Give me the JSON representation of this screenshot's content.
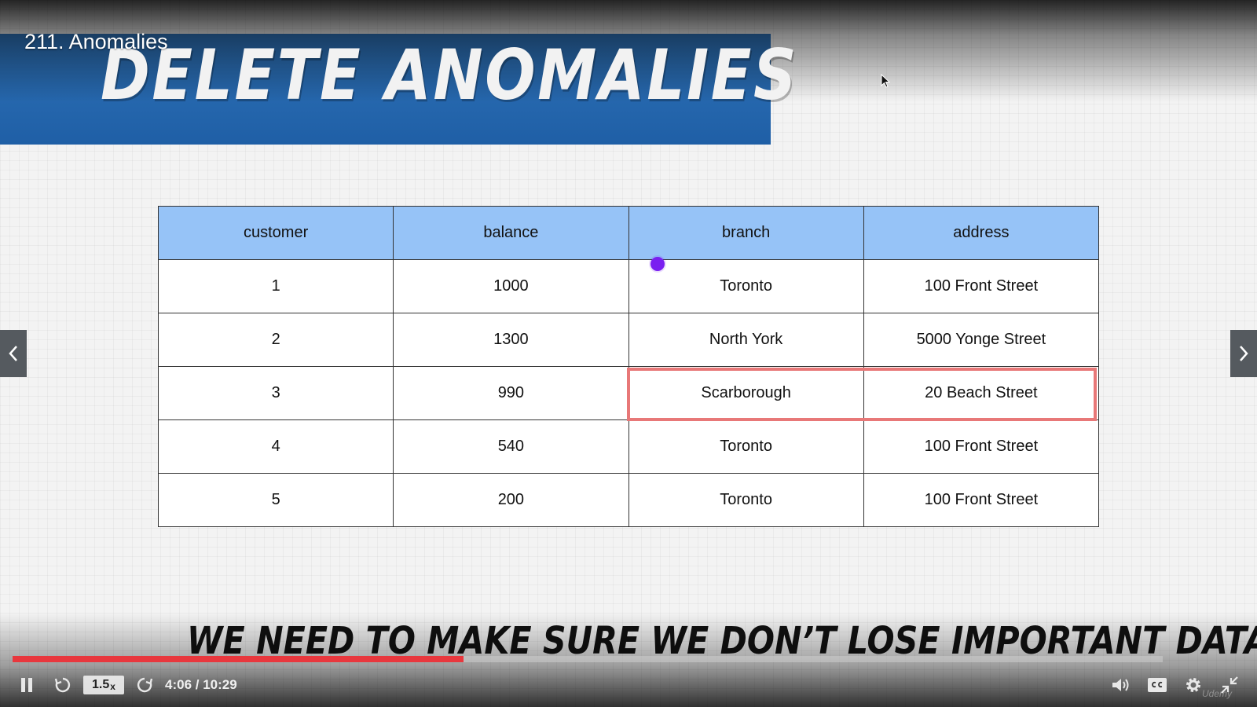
{
  "lecture": {
    "title": "211. Anomalies"
  },
  "slide": {
    "title": "DELETE ANOMALIES",
    "subtitle": "WE NEED TO MAKE SURE WE DON’T LOSE IMPORTANT DATA",
    "table": {
      "headers": [
        "customer",
        "balance",
        "branch",
        "address"
      ],
      "rows": [
        [
          "1",
          "1000",
          "Toronto",
          "100 Front Street"
        ],
        [
          "2",
          "1300",
          "North York",
          "5000 Yonge Street"
        ],
        [
          "3",
          "990",
          "Scarborough",
          "20 Beach Street"
        ],
        [
          "4",
          "540",
          "Toronto",
          "100 Front Street"
        ],
        [
          "5",
          "200",
          "Toronto",
          "100 Front Street"
        ]
      ],
      "highlighted_row": 3
    }
  },
  "player": {
    "speed": "1.5x",
    "time": "4:06 / 10:29",
    "progress_fraction": 0.392,
    "watermark": "Udemy",
    "accent_color": "#e8373d"
  },
  "icons": {
    "play_pause": "pause-icon",
    "rewind": "rewind-icon",
    "forward": "forward-icon",
    "volume": "volume-icon",
    "captions": "captions-icon",
    "settings": "gear-icon",
    "fullscreen": "exit-fullscreen-icon",
    "prev": "chevron-left-icon",
    "next": "chevron-right-icon"
  }
}
